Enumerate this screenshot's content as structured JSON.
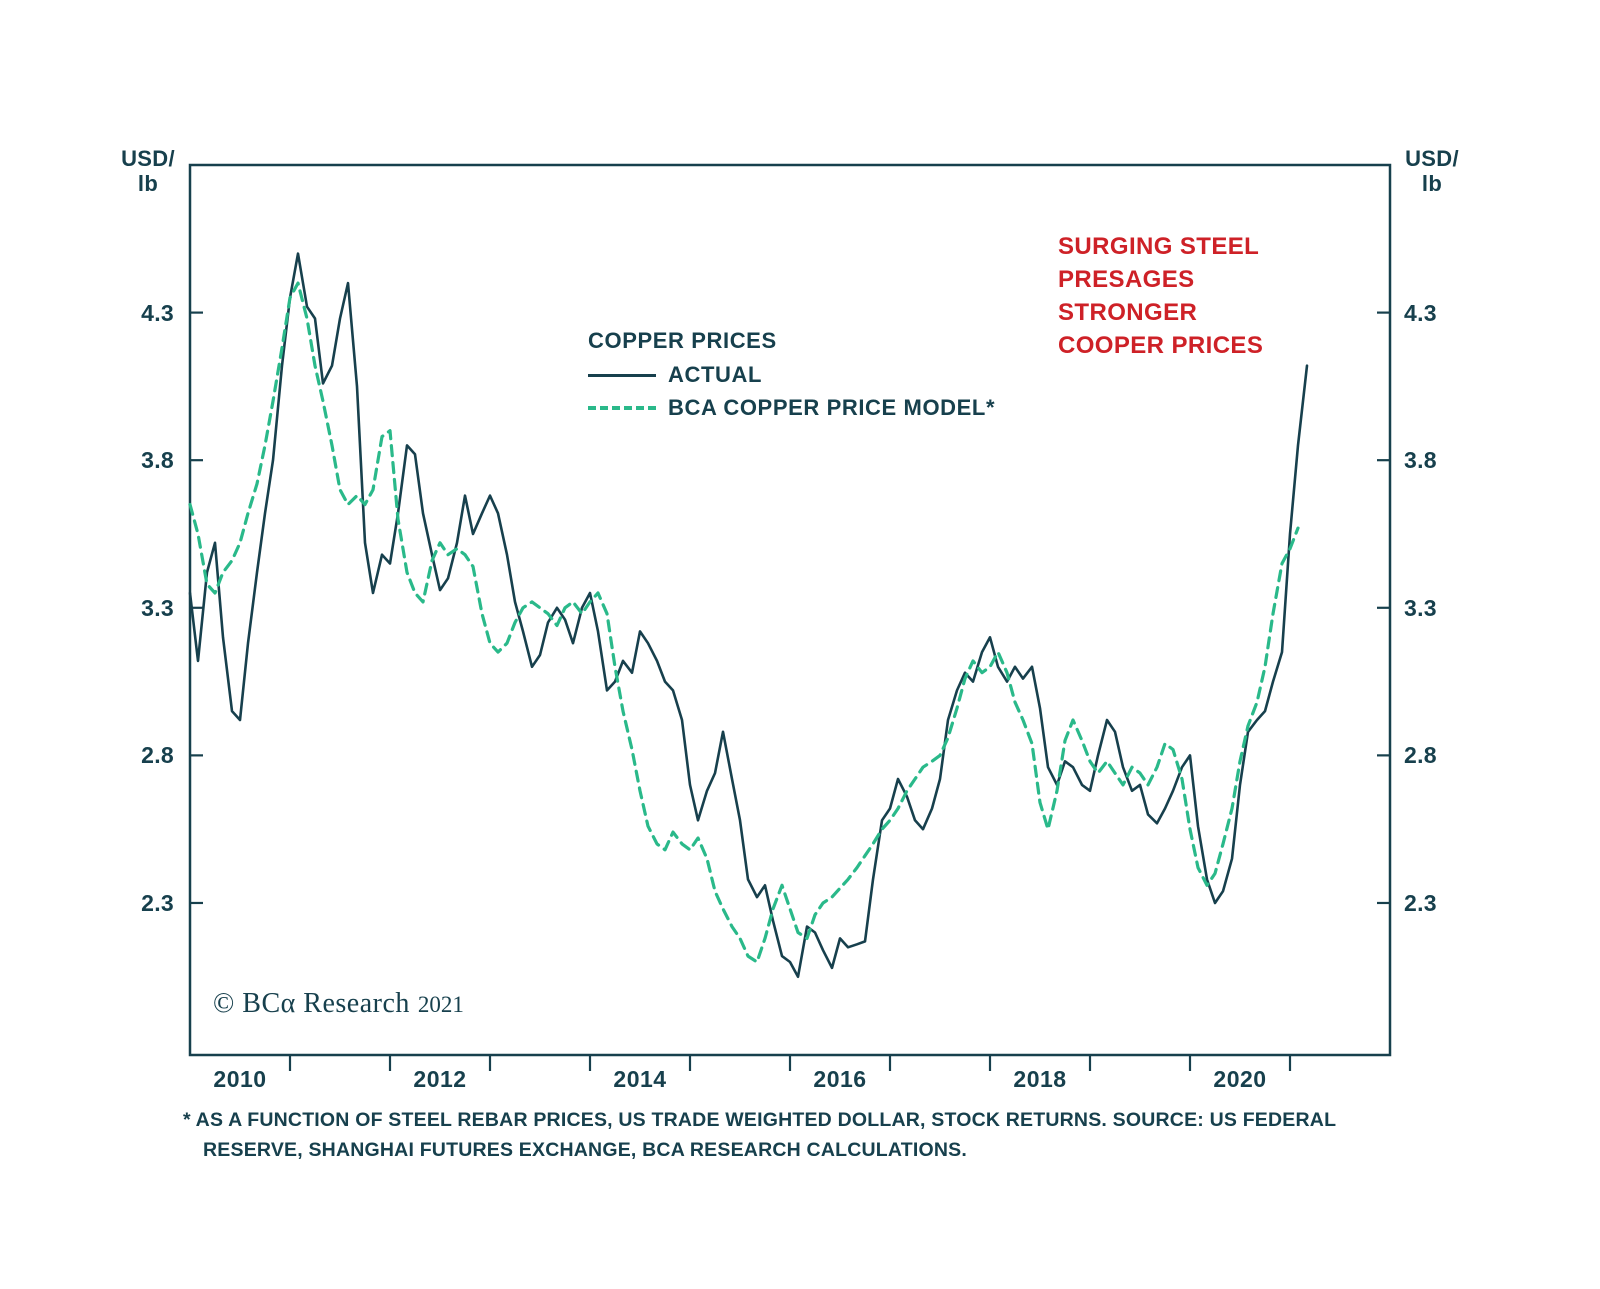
{
  "colors": {
    "axis": "#17404d",
    "text": "#17404d",
    "actual": "#17404d",
    "model": "#2ab98a",
    "annotation": "#ce2127"
  },
  "units": {
    "left_line1": "USD/",
    "left_line2": "lb",
    "right_line1": "USD/",
    "right_line2": "lb"
  },
  "legend": {
    "title": "COPPER PRICES",
    "actual_label": "ACTUAL",
    "model_label": "BCA COPPER PRICE MODEL*"
  },
  "annotation": {
    "lines": [
      "SURGING STEEL",
      "PRESAGES",
      "STRONGER",
      "COOPER PRICES"
    ]
  },
  "copyright": {
    "brand": "© BCα Research",
    "year": "2021"
  },
  "footnote": {
    "line1": "* AS A FUNCTION OF STEEL REBAR PRICES, US TRADE WEIGHTED DOLLAR, STOCK RETURNS. SOURCE: US FEDERAL",
    "line2": "RESERVE, SHANGHAI FUTURES EXCHANGE, BCA RESEARCH CALCULATIONS."
  },
  "chart_data": {
    "type": "line",
    "title": "COPPER PRICES",
    "ylabel": "USD/lb",
    "xlim": [
      2010,
      2022
    ],
    "ylim": [
      1.785,
      4.8
    ],
    "yticks": [
      2.3,
      2.8,
      3.3,
      3.8,
      4.3
    ],
    "xticks": [
      2011,
      2012,
      2013,
      2014,
      2015,
      2016,
      2017,
      2018,
      2019,
      2020,
      2021
    ],
    "xlabel_years": [
      2010,
      2012,
      2014,
      2016,
      2018,
      2020
    ],
    "grid": false,
    "legend_position": "upper-center-inside",
    "series": [
      {
        "id": "actual",
        "name": "ACTUAL",
        "style": "solid",
        "color": "#17404d",
        "stroke_width": 2.6,
        "points": [
          [
            2010.0,
            3.35
          ],
          [
            2010.08,
            3.12
          ],
          [
            2010.17,
            3.42
          ],
          [
            2010.25,
            3.52
          ],
          [
            2010.33,
            3.2
          ],
          [
            2010.42,
            2.95
          ],
          [
            2010.5,
            2.92
          ],
          [
            2010.58,
            3.18
          ],
          [
            2010.67,
            3.42
          ],
          [
            2010.75,
            3.62
          ],
          [
            2010.83,
            3.8
          ],
          [
            2010.92,
            4.12
          ],
          [
            2011.0,
            4.35
          ],
          [
            2011.08,
            4.5
          ],
          [
            2011.17,
            4.32
          ],
          [
            2011.25,
            4.28
          ],
          [
            2011.33,
            4.06
          ],
          [
            2011.42,
            4.12
          ],
          [
            2011.5,
            4.28
          ],
          [
            2011.58,
            4.4
          ],
          [
            2011.67,
            4.05
          ],
          [
            2011.75,
            3.52
          ],
          [
            2011.83,
            3.35
          ],
          [
            2011.92,
            3.48
          ],
          [
            2012.0,
            3.45
          ],
          [
            2012.08,
            3.62
          ],
          [
            2012.17,
            3.85
          ],
          [
            2012.25,
            3.82
          ],
          [
            2012.33,
            3.62
          ],
          [
            2012.42,
            3.48
          ],
          [
            2012.5,
            3.36
          ],
          [
            2012.58,
            3.4
          ],
          [
            2012.67,
            3.52
          ],
          [
            2012.75,
            3.68
          ],
          [
            2012.83,
            3.55
          ],
          [
            2012.92,
            3.62
          ],
          [
            2013.0,
            3.68
          ],
          [
            2013.08,
            3.62
          ],
          [
            2013.17,
            3.48
          ],
          [
            2013.25,
            3.32
          ],
          [
            2013.33,
            3.22
          ],
          [
            2013.42,
            3.1
          ],
          [
            2013.5,
            3.14
          ],
          [
            2013.58,
            3.25
          ],
          [
            2013.67,
            3.3
          ],
          [
            2013.75,
            3.26
          ],
          [
            2013.83,
            3.18
          ],
          [
            2013.92,
            3.3
          ],
          [
            2014.0,
            3.35
          ],
          [
            2014.08,
            3.22
          ],
          [
            2014.17,
            3.02
          ],
          [
            2014.25,
            3.05
          ],
          [
            2014.33,
            3.12
          ],
          [
            2014.42,
            3.08
          ],
          [
            2014.5,
            3.22
          ],
          [
            2014.58,
            3.18
          ],
          [
            2014.67,
            3.12
          ],
          [
            2014.75,
            3.05
          ],
          [
            2014.83,
            3.02
          ],
          [
            2014.92,
            2.92
          ],
          [
            2015.0,
            2.7
          ],
          [
            2015.08,
            2.58
          ],
          [
            2015.17,
            2.68
          ],
          [
            2015.25,
            2.74
          ],
          [
            2015.33,
            2.88
          ],
          [
            2015.42,
            2.72
          ],
          [
            2015.5,
            2.58
          ],
          [
            2015.58,
            2.38
          ],
          [
            2015.67,
            2.32
          ],
          [
            2015.75,
            2.36
          ],
          [
            2015.83,
            2.24
          ],
          [
            2015.92,
            2.12
          ],
          [
            2016.0,
            2.1
          ],
          [
            2016.08,
            2.05
          ],
          [
            2016.17,
            2.22
          ],
          [
            2016.25,
            2.2
          ],
          [
            2016.33,
            2.14
          ],
          [
            2016.42,
            2.08
          ],
          [
            2016.5,
            2.18
          ],
          [
            2016.58,
            2.15
          ],
          [
            2016.67,
            2.16
          ],
          [
            2016.75,
            2.17
          ],
          [
            2016.83,
            2.38
          ],
          [
            2016.92,
            2.58
          ],
          [
            2017.0,
            2.62
          ],
          [
            2017.08,
            2.72
          ],
          [
            2017.17,
            2.66
          ],
          [
            2017.25,
            2.58
          ],
          [
            2017.33,
            2.55
          ],
          [
            2017.42,
            2.62
          ],
          [
            2017.5,
            2.72
          ],
          [
            2017.58,
            2.92
          ],
          [
            2017.67,
            3.02
          ],
          [
            2017.75,
            3.08
          ],
          [
            2017.83,
            3.05
          ],
          [
            2017.92,
            3.15
          ],
          [
            2018.0,
            3.2
          ],
          [
            2018.08,
            3.1
          ],
          [
            2018.17,
            3.05
          ],
          [
            2018.25,
            3.1
          ],
          [
            2018.33,
            3.06
          ],
          [
            2018.42,
            3.1
          ],
          [
            2018.5,
            2.96
          ],
          [
            2018.58,
            2.76
          ],
          [
            2018.67,
            2.7
          ],
          [
            2018.75,
            2.78
          ],
          [
            2018.83,
            2.76
          ],
          [
            2018.92,
            2.7
          ],
          [
            2019.0,
            2.68
          ],
          [
            2019.08,
            2.8
          ],
          [
            2019.17,
            2.92
          ],
          [
            2019.25,
            2.88
          ],
          [
            2019.33,
            2.76
          ],
          [
            2019.42,
            2.68
          ],
          [
            2019.5,
            2.7
          ],
          [
            2019.58,
            2.6
          ],
          [
            2019.67,
            2.57
          ],
          [
            2019.75,
            2.62
          ],
          [
            2019.83,
            2.68
          ],
          [
            2019.92,
            2.76
          ],
          [
            2020.0,
            2.8
          ],
          [
            2020.08,
            2.56
          ],
          [
            2020.17,
            2.38
          ],
          [
            2020.25,
            2.3
          ],
          [
            2020.33,
            2.34
          ],
          [
            2020.42,
            2.45
          ],
          [
            2020.5,
            2.7
          ],
          [
            2020.58,
            2.88
          ],
          [
            2020.67,
            2.92
          ],
          [
            2020.75,
            2.95
          ],
          [
            2020.83,
            3.05
          ],
          [
            2020.92,
            3.15
          ],
          [
            2021.0,
            3.55
          ],
          [
            2021.08,
            3.85
          ],
          [
            2021.17,
            4.12
          ]
        ]
      },
      {
        "id": "model",
        "name": "BCA COPPER PRICE MODEL*",
        "style": "dashed",
        "color": "#2ab98a",
        "stroke_width": 3.2,
        "dash": "10 7",
        "points": [
          [
            2010.0,
            3.65
          ],
          [
            2010.08,
            3.55
          ],
          [
            2010.17,
            3.38
          ],
          [
            2010.25,
            3.35
          ],
          [
            2010.33,
            3.42
          ],
          [
            2010.42,
            3.46
          ],
          [
            2010.5,
            3.52
          ],
          [
            2010.58,
            3.62
          ],
          [
            2010.67,
            3.72
          ],
          [
            2010.75,
            3.85
          ],
          [
            2010.83,
            4.0
          ],
          [
            2010.92,
            4.18
          ],
          [
            2011.0,
            4.35
          ],
          [
            2011.08,
            4.4
          ],
          [
            2011.17,
            4.28
          ],
          [
            2011.25,
            4.12
          ],
          [
            2011.33,
            4.0
          ],
          [
            2011.42,
            3.85
          ],
          [
            2011.5,
            3.7
          ],
          [
            2011.58,
            3.65
          ],
          [
            2011.67,
            3.68
          ],
          [
            2011.75,
            3.65
          ],
          [
            2011.83,
            3.7
          ],
          [
            2011.92,
            3.88
          ],
          [
            2012.0,
            3.9
          ],
          [
            2012.08,
            3.6
          ],
          [
            2012.17,
            3.42
          ],
          [
            2012.25,
            3.35
          ],
          [
            2012.33,
            3.32
          ],
          [
            2012.42,
            3.46
          ],
          [
            2012.5,
            3.52
          ],
          [
            2012.58,
            3.48
          ],
          [
            2012.67,
            3.5
          ],
          [
            2012.75,
            3.48
          ],
          [
            2012.83,
            3.44
          ],
          [
            2012.92,
            3.28
          ],
          [
            2013.0,
            3.18
          ],
          [
            2013.08,
            3.15
          ],
          [
            2013.17,
            3.18
          ],
          [
            2013.25,
            3.25
          ],
          [
            2013.33,
            3.3
          ],
          [
            2013.42,
            3.32
          ],
          [
            2013.5,
            3.3
          ],
          [
            2013.58,
            3.28
          ],
          [
            2013.67,
            3.24
          ],
          [
            2013.75,
            3.3
          ],
          [
            2013.83,
            3.32
          ],
          [
            2013.92,
            3.28
          ],
          [
            2014.0,
            3.32
          ],
          [
            2014.08,
            3.35
          ],
          [
            2014.17,
            3.28
          ],
          [
            2014.25,
            3.1
          ],
          [
            2014.33,
            2.95
          ],
          [
            2014.42,
            2.82
          ],
          [
            2014.5,
            2.68
          ],
          [
            2014.58,
            2.56
          ],
          [
            2014.67,
            2.5
          ],
          [
            2014.75,
            2.48
          ],
          [
            2014.83,
            2.54
          ],
          [
            2014.92,
            2.5
          ],
          [
            2015.0,
            2.48
          ],
          [
            2015.08,
            2.52
          ],
          [
            2015.17,
            2.45
          ],
          [
            2015.25,
            2.34
          ],
          [
            2015.33,
            2.28
          ],
          [
            2015.42,
            2.22
          ],
          [
            2015.5,
            2.18
          ],
          [
            2015.58,
            2.12
          ],
          [
            2015.67,
            2.1
          ],
          [
            2015.75,
            2.18
          ],
          [
            2015.83,
            2.28
          ],
          [
            2015.92,
            2.36
          ],
          [
            2016.0,
            2.28
          ],
          [
            2016.08,
            2.2
          ],
          [
            2016.17,
            2.18
          ],
          [
            2016.25,
            2.26
          ],
          [
            2016.33,
            2.3
          ],
          [
            2016.42,
            2.32
          ],
          [
            2016.5,
            2.35
          ],
          [
            2016.58,
            2.38
          ],
          [
            2016.67,
            2.42
          ],
          [
            2016.75,
            2.46
          ],
          [
            2016.83,
            2.5
          ],
          [
            2016.92,
            2.55
          ],
          [
            2017.0,
            2.58
          ],
          [
            2017.08,
            2.62
          ],
          [
            2017.17,
            2.68
          ],
          [
            2017.25,
            2.72
          ],
          [
            2017.33,
            2.76
          ],
          [
            2017.42,
            2.78
          ],
          [
            2017.5,
            2.8
          ],
          [
            2017.58,
            2.86
          ],
          [
            2017.67,
            2.96
          ],
          [
            2017.75,
            3.06
          ],
          [
            2017.83,
            3.12
          ],
          [
            2017.92,
            3.08
          ],
          [
            2018.0,
            3.1
          ],
          [
            2018.08,
            3.15
          ],
          [
            2018.17,
            3.08
          ],
          [
            2018.25,
            2.98
          ],
          [
            2018.33,
            2.92
          ],
          [
            2018.42,
            2.84
          ],
          [
            2018.5,
            2.64
          ],
          [
            2018.58,
            2.55
          ],
          [
            2018.67,
            2.68
          ],
          [
            2018.75,
            2.85
          ],
          [
            2018.83,
            2.92
          ],
          [
            2018.92,
            2.85
          ],
          [
            2019.0,
            2.78
          ],
          [
            2019.08,
            2.74
          ],
          [
            2019.17,
            2.78
          ],
          [
            2019.25,
            2.74
          ],
          [
            2019.33,
            2.7
          ],
          [
            2019.42,
            2.76
          ],
          [
            2019.5,
            2.74
          ],
          [
            2019.58,
            2.7
          ],
          [
            2019.67,
            2.76
          ],
          [
            2019.75,
            2.84
          ],
          [
            2019.83,
            2.82
          ],
          [
            2019.92,
            2.72
          ],
          [
            2020.0,
            2.55
          ],
          [
            2020.08,
            2.42
          ],
          [
            2020.17,
            2.36
          ],
          [
            2020.25,
            2.4
          ],
          [
            2020.33,
            2.5
          ],
          [
            2020.42,
            2.62
          ],
          [
            2020.5,
            2.78
          ],
          [
            2020.58,
            2.9
          ],
          [
            2020.67,
            2.98
          ],
          [
            2020.75,
            3.1
          ],
          [
            2020.83,
            3.28
          ],
          [
            2020.92,
            3.45
          ],
          [
            2021.0,
            3.5
          ],
          [
            2021.08,
            3.57
          ]
        ]
      }
    ]
  }
}
